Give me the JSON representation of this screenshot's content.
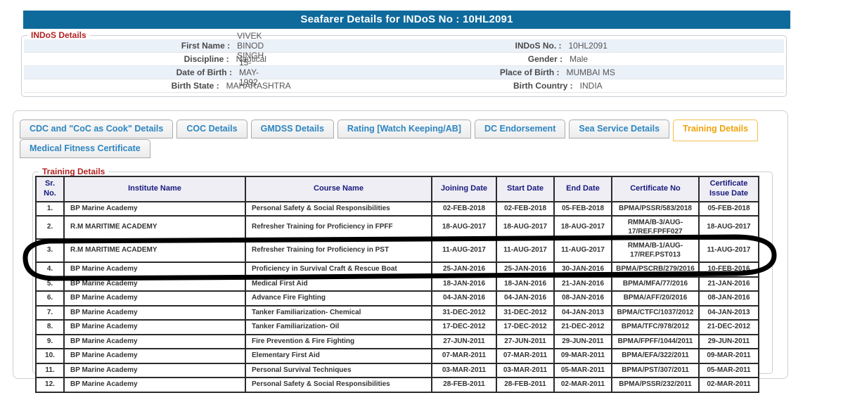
{
  "title": "Seafarer Details for INDoS No : 10HL2091",
  "indos_details": {
    "legend": "INDoS Details",
    "rows": [
      {
        "left_label": "First Name :",
        "left_value": "VIVEK BINOD SINGH",
        "right_label": "INDoS No. :",
        "right_value": "10HL2091"
      },
      {
        "left_label": "Discipline :",
        "left_value": "Nautical",
        "right_label": "Gender :",
        "right_value": "Male"
      },
      {
        "left_label": "Date of Birth :",
        "left_value": "15-MAY-1992",
        "right_label": "Place of Birth :",
        "right_value": "MUMBAI MS"
      },
      {
        "left_label": "Birth State :",
        "left_value": "MAHARASHTRA",
        "right_label": "Birth Country :",
        "right_value": "INDIA"
      }
    ]
  },
  "tabs": {
    "row1": [
      {
        "label": "CDC and \"CoC as Cook\" Details",
        "active": false
      },
      {
        "label": "COC Details",
        "active": false
      },
      {
        "label": "GMDSS Details",
        "active": false
      },
      {
        "label": "Rating [Watch Keeping/AB]",
        "active": false
      },
      {
        "label": "DC Endorsement",
        "active": false
      },
      {
        "label": "Sea Service Details",
        "active": false
      },
      {
        "label": "Training Details",
        "active": true
      }
    ],
    "row2": [
      {
        "label": "Medical Fitness Certificate",
        "active": false
      }
    ]
  },
  "training": {
    "legend": "Training Details",
    "columns": [
      "Sr. No.",
      "Institute Name",
      "Course Name",
      "Joining Date",
      "Start Date",
      "End Date",
      "Certificate No",
      "Certificate Issue Date"
    ],
    "rows": [
      [
        "1.",
        "BP Marine Academy",
        "Personal Safety & Social Responsibilities",
        "02-FEB-2018",
        "02-FEB-2018",
        "05-FEB-2018",
        "BPMA/PSSR/583/2018",
        "05-FEB-2018"
      ],
      [
        "2.",
        "R.M MARITIME ACADEMY",
        "Refresher Training for Proficiency in FPFF",
        "18-AUG-2017",
        "18-AUG-2017",
        "18-AUG-2017",
        "RMMA/B-3/AUG-17/REF.FPFF027",
        "18-AUG-2017"
      ],
      [
        "3.",
        "R.M MARITIME ACADEMY",
        "Refresher Training for Proficiency in PST",
        "11-AUG-2017",
        "11-AUG-2017",
        "11-AUG-2017",
        "RMMA/B-1/AUG-17/REF.PST013",
        "11-AUG-2017"
      ],
      [
        "4.",
        "BP Marine Academy",
        "Proficiency in Survival Craft & Rescue Boat",
        "25-JAN-2016",
        "25-JAN-2016",
        "30-JAN-2016",
        "BPMA/PSCRB/279/2016",
        "10-FEB-2016"
      ],
      [
        "5.",
        "BP Marine Academy",
        "Medical First Aid",
        "18-JAN-2016",
        "18-JAN-2016",
        "21-JAN-2016",
        "BPMA/MFA/77/2016",
        "21-JAN-2016"
      ],
      [
        "6.",
        "BP Marine Academy",
        "Advance Fire Fighting",
        "04-JAN-2016",
        "04-JAN-2016",
        "08-JAN-2016",
        "BPMA/AFF/20/2016",
        "08-JAN-2016"
      ],
      [
        "7.",
        "BP Marine Academy",
        "Tanker Familiarization- Chemical",
        "31-DEC-2012",
        "31-DEC-2012",
        "04-JAN-2013",
        "BPMA/CTFC/1037/2012",
        "04-JAN-2013"
      ],
      [
        "8.",
        "BP Marine Academy",
        "Tanker Familiarization- Oil",
        "17-DEC-2012",
        "17-DEC-2012",
        "21-DEC-2012",
        "BPMA/TFC/978/2012",
        "21-DEC-2012"
      ],
      [
        "9.",
        "BP Marine Academy",
        "Fire Prevention & Fire Fighting",
        "27-JUN-2011",
        "27-JUN-2011",
        "29-JUN-2011",
        "BPMA/FPFF/1044/2011",
        "29-JUN-2011"
      ],
      [
        "10.",
        "BP Marine Academy",
        "Elementary First Aid",
        "07-MAR-2011",
        "07-MAR-2011",
        "09-MAR-2011",
        "BPMA/EFA/322/2011",
        "09-MAR-2011"
      ],
      [
        "11.",
        "BP Marine Academy",
        "Personal Survival Techniques",
        "03-MAR-2011",
        "03-MAR-2011",
        "05-MAR-2011",
        "BPMA/PST/307/2011",
        "05-MAR-2011"
      ],
      [
        "12.",
        "BP Marine Academy",
        "Personal Safety & Social Responsibilities",
        "28-FEB-2011",
        "28-FEB-2011",
        "02-MAR-2011",
        "BPMA/PSSR/232/2011",
        "02-MAR-2011"
      ]
    ]
  },
  "annotation": {
    "description": "hand-drawn black box circling table rows 4 to 6",
    "color": "#000000"
  },
  "colors": {
    "titlebar_bg": "#0F6A9C",
    "legend_red": "#B22222",
    "tab_text_blue": "#2E86C1",
    "active_tab_orange": "#F0A30A",
    "row_alt_blue": "#EBF1F9",
    "table_header_text": "#19197E"
  }
}
